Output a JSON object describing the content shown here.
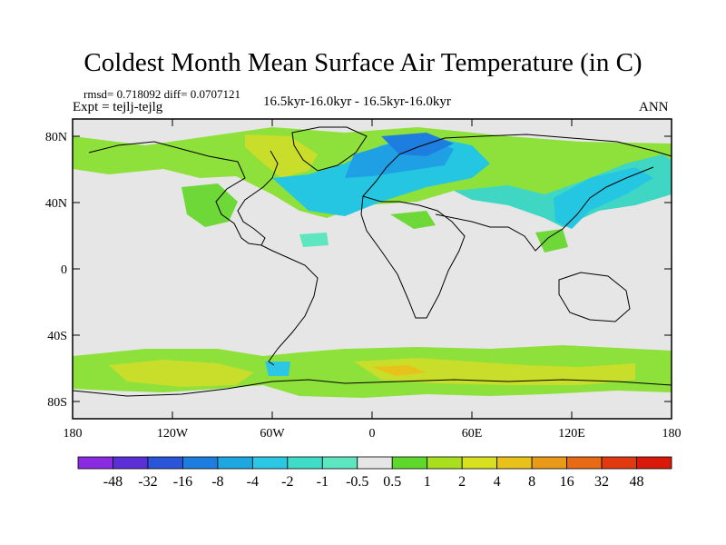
{
  "header": {
    "title": "Coldest Month Mean Surface Air Temperature (in C)",
    "stats": "rmsd= 0.718092  diff= 0.0707121",
    "experiment": "Expt = tejlj-tejlg",
    "period": "16.5kyr-16.0kyr - 16.5kyr-16.0kyr",
    "season": "ANN"
  },
  "map": {
    "lat_labels": [
      "80N",
      "40N",
      "0",
      "40S",
      "80S"
    ],
    "lon_labels": [
      "180",
      "120W",
      "60W",
      "0",
      "60E",
      "120E",
      "180"
    ]
  },
  "colorbar": {
    "labels": [
      "-48",
      "-32",
      "-16",
      "-8",
      "-4",
      "-2",
      "-1",
      "-0.5",
      "0.5",
      "1",
      "2",
      "4",
      "8",
      "16",
      "32",
      "48"
    ],
    "colors": [
      "#8a2be2",
      "#5a2fd8",
      "#2a55d8",
      "#1e7ee0",
      "#1ea6e0",
      "#2cc7e4",
      "#3fdcc8",
      "#5de6c0",
      "#e6e6e6",
      "#5fd82e",
      "#a8e020",
      "#d8e020",
      "#e8c21a",
      "#e89a18",
      "#e86a14",
      "#e23a10",
      "#d81a0a"
    ]
  }
}
